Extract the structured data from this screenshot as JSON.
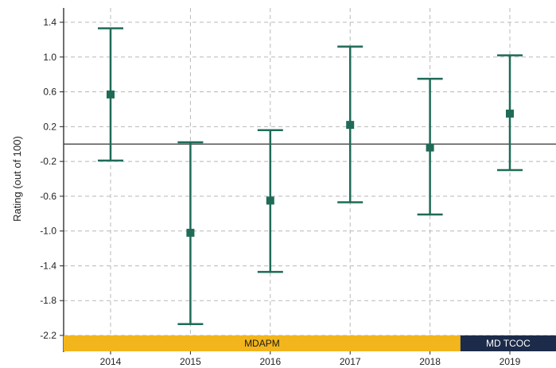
{
  "chart_data": {
    "type": "errorbar",
    "title": "",
    "xlabel": "",
    "ylabel": "Rating (out of 100)",
    "categories": [
      "2014",
      "2015",
      "2016",
      "2017",
      "2018",
      "2019"
    ],
    "series": [
      {
        "values": [
          0.57,
          -1.02,
          -0.65,
          0.22,
          -0.04,
          0.35
        ],
        "lower": [
          -0.19,
          -2.07,
          -1.47,
          -0.67,
          -0.81,
          -0.3
        ],
        "upper": [
          1.33,
          0.02,
          0.16,
          1.12,
          0.75,
          1.02
        ],
        "color": "#1f6b57"
      }
    ],
    "ylim": [
      -2.2,
      1.55
    ],
    "yticks": [
      "1.4",
      "1.0",
      "0.6",
      "0.2",
      "-0.2",
      "-0.6",
      "-1.0",
      "-1.4",
      "-1.8",
      "-2.2"
    ],
    "reference_line": 0,
    "grid": true,
    "bands": [
      {
        "label": "MDAPM",
        "color": "#f2b51c",
        "text_color": "#1b1b1b",
        "categories": [
          "2014",
          "2015",
          "2016",
          "2017",
          "2018"
        ]
      },
      {
        "label": "MD TCOC",
        "color": "#1c2b4a",
        "text_color": "#ffffff",
        "categories": [
          "2019"
        ]
      }
    ]
  }
}
